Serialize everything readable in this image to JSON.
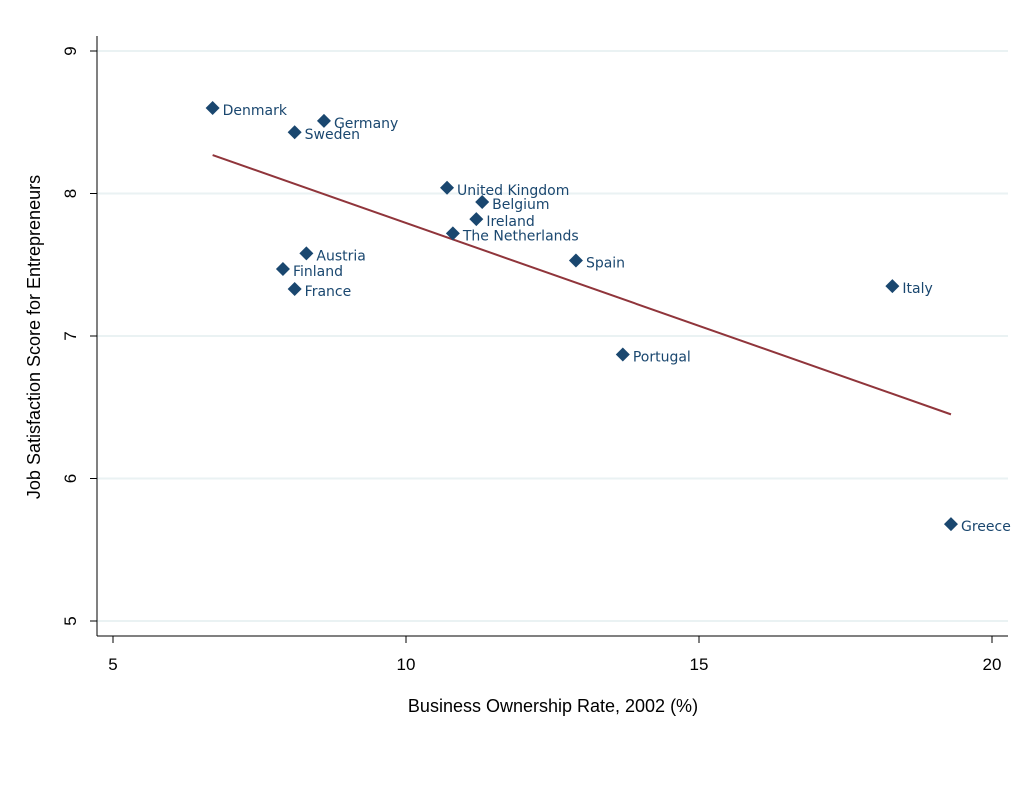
{
  "chart_data": {
    "type": "scatter",
    "title": "",
    "xlabel": "Business Ownership Rate, 2002 (%)",
    "ylabel": "Job Satisfaction Score for Entrepreneurs",
    "xlim": [
      5,
      20.3
    ],
    "ylim": [
      5,
      9.3
    ],
    "xticks": [
      "5",
      "10",
      "15",
      "20"
    ],
    "yticks": [
      "5",
      "6",
      "7",
      "8",
      "9"
    ],
    "grid": true,
    "legend": "none",
    "colors": {
      "points": "#1a476f",
      "fit_line": "#90353b",
      "grid": "#eaf2f3"
    },
    "points": [
      {
        "label": "Denmark",
        "x": 6.7,
        "y": 8.6
      },
      {
        "label": "Germany",
        "x": 8.6,
        "y": 8.51
      },
      {
        "label": "Sweden",
        "x": 8.1,
        "y": 8.43
      },
      {
        "label": "United Kingdom",
        "x": 10.7,
        "y": 8.04
      },
      {
        "label": "Belgium",
        "x": 11.3,
        "y": 7.94
      },
      {
        "label": "Ireland",
        "x": 11.2,
        "y": 7.82
      },
      {
        "label": "The Netherlands",
        "x": 10.8,
        "y": 7.72
      },
      {
        "label": "Austria",
        "x": 8.3,
        "y": 7.58
      },
      {
        "label": "Finland",
        "x": 7.9,
        "y": 7.47
      },
      {
        "label": "France",
        "x": 8.1,
        "y": 7.33
      },
      {
        "label": "Spain",
        "x": 12.9,
        "y": 7.53
      },
      {
        "label": "Italy",
        "x": 18.3,
        "y": 7.35
      },
      {
        "label": "Portugal",
        "x": 13.7,
        "y": 6.87
      },
      {
        "label": "Greece",
        "x": 19.3,
        "y": 5.68
      }
    ],
    "fit_line": [
      {
        "x": 6.7,
        "y": 8.27
      },
      {
        "x": 19.3,
        "y": 6.45
      }
    ]
  }
}
